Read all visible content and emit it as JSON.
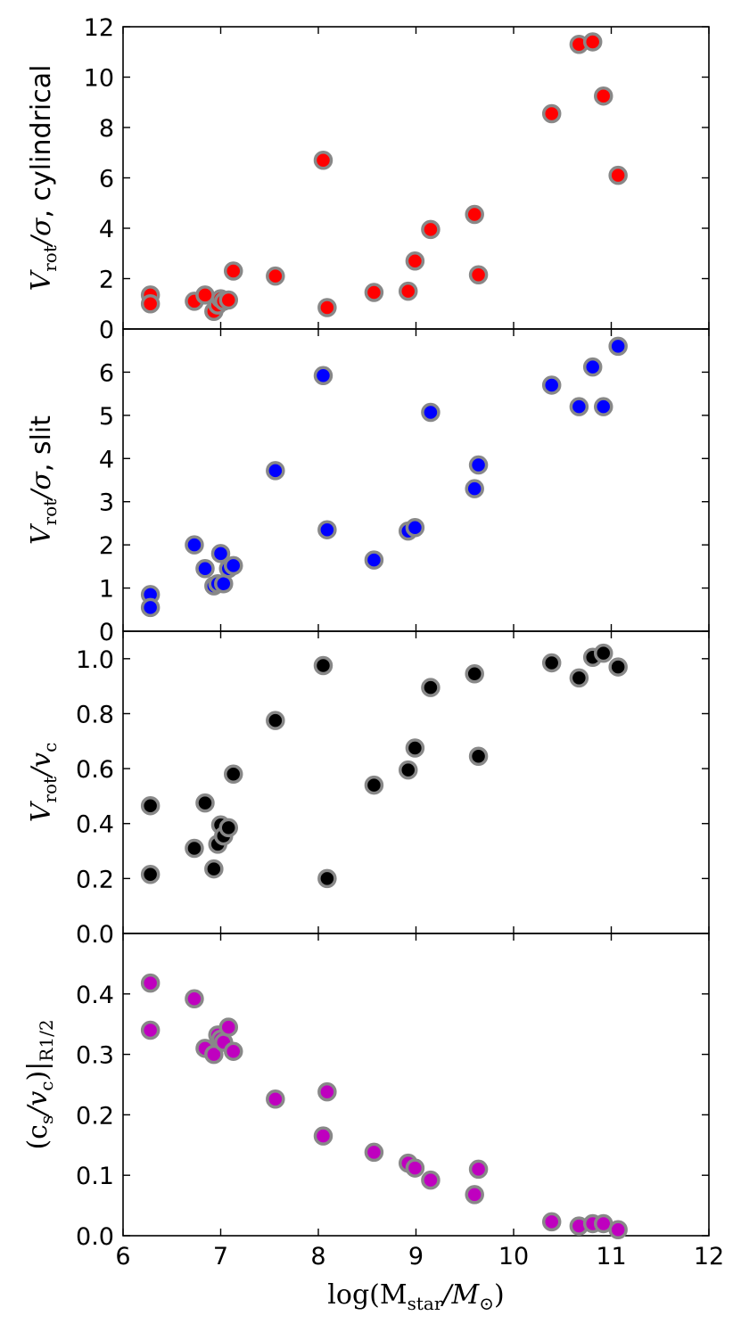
{
  "chart_data": [
    {
      "type": "scatter",
      "color": "#ff0000",
      "ylabel": {
        "prefix": "V",
        "sub": "rot",
        "mid": "/σ",
        "suffix": ", cylindrical"
      },
      "ylim": [
        0,
        12
      ],
      "yticks": [
        0,
        2,
        4,
        6,
        8,
        10,
        12
      ],
      "xlim": [
        6,
        12
      ],
      "points": [
        {
          "x": 6.28,
          "y": 1.35
        },
        {
          "x": 6.28,
          "y": 1.0
        },
        {
          "x": 6.73,
          "y": 1.1
        },
        {
          "x": 6.84,
          "y": 1.35
        },
        {
          "x": 6.93,
          "y": 0.7
        },
        {
          "x": 6.97,
          "y": 0.95
        },
        {
          "x": 7.0,
          "y": 1.2
        },
        {
          "x": 7.03,
          "y": 1.1
        },
        {
          "x": 7.08,
          "y": 1.15
        },
        {
          "x": 7.13,
          "y": 2.3
        },
        {
          "x": 7.56,
          "y": 2.1
        },
        {
          "x": 8.05,
          "y": 6.7
        },
        {
          "x": 8.09,
          "y": 0.85
        },
        {
          "x": 8.57,
          "y": 1.45
        },
        {
          "x": 8.92,
          "y": 1.5
        },
        {
          "x": 8.99,
          "y": 2.7
        },
        {
          "x": 9.15,
          "y": 3.95
        },
        {
          "x": 9.6,
          "y": 4.55
        },
        {
          "x": 9.64,
          "y": 2.15
        },
        {
          "x": 10.39,
          "y": 8.55
        },
        {
          "x": 10.67,
          "y": 11.3
        },
        {
          "x": 10.81,
          "y": 11.4
        },
        {
          "x": 10.92,
          "y": 9.25
        },
        {
          "x": 11.07,
          "y": 6.1
        }
      ]
    },
    {
      "type": "scatter",
      "color": "#0000ff",
      "ylabel": {
        "prefix": "V",
        "sub": "rot",
        "mid": "/σ",
        "suffix": ", slit"
      },
      "ylim": [
        0,
        7
      ],
      "yticks": [
        0,
        1,
        2,
        3,
        4,
        5,
        6
      ],
      "xlim": [
        6,
        12
      ],
      "points": [
        {
          "x": 6.28,
          "y": 0.85
        },
        {
          "x": 6.28,
          "y": 0.55
        },
        {
          "x": 6.73,
          "y": 2.0
        },
        {
          "x": 6.84,
          "y": 1.45
        },
        {
          "x": 6.93,
          "y": 1.05
        },
        {
          "x": 6.97,
          "y": 1.1
        },
        {
          "x": 7.0,
          "y": 1.8
        },
        {
          "x": 7.03,
          "y": 1.1
        },
        {
          "x": 7.08,
          "y": 1.45
        },
        {
          "x": 7.13,
          "y": 1.52
        },
        {
          "x": 7.56,
          "y": 3.72
        },
        {
          "x": 8.05,
          "y": 5.92
        },
        {
          "x": 8.09,
          "y": 2.35
        },
        {
          "x": 8.57,
          "y": 1.65
        },
        {
          "x": 8.92,
          "y": 2.32
        },
        {
          "x": 8.99,
          "y": 2.4
        },
        {
          "x": 9.15,
          "y": 5.07
        },
        {
          "x": 9.6,
          "y": 3.3
        },
        {
          "x": 9.64,
          "y": 3.85
        },
        {
          "x": 10.39,
          "y": 5.7
        },
        {
          "x": 10.67,
          "y": 5.2
        },
        {
          "x": 10.81,
          "y": 6.12
        },
        {
          "x": 10.92,
          "y": 5.2
        },
        {
          "x": 11.07,
          "y": 6.6
        }
      ]
    },
    {
      "type": "scatter",
      "color": "#000000",
      "ylabel": {
        "prefix": "V",
        "sub": "rot",
        "mid": "/v",
        "sub2": "c",
        "suffix": ""
      },
      "ylim": [
        0,
        1.1
      ],
      "yticks": [
        "0.0",
        "0.2",
        "0.4",
        "0.6",
        "0.8",
        "1.0"
      ],
      "xlim": [
        6,
        12
      ],
      "points": [
        {
          "x": 6.28,
          "y": 0.465
        },
        {
          "x": 6.28,
          "y": 0.215
        },
        {
          "x": 6.73,
          "y": 0.31
        },
        {
          "x": 6.84,
          "y": 0.475
        },
        {
          "x": 6.93,
          "y": 0.235
        },
        {
          "x": 6.97,
          "y": 0.325
        },
        {
          "x": 7.0,
          "y": 0.395
        },
        {
          "x": 7.03,
          "y": 0.355
        },
        {
          "x": 7.08,
          "y": 0.385
        },
        {
          "x": 7.13,
          "y": 0.58
        },
        {
          "x": 7.56,
          "y": 0.775
        },
        {
          "x": 8.05,
          "y": 0.975
        },
        {
          "x": 8.09,
          "y": 0.2
        },
        {
          "x": 8.57,
          "y": 0.54
        },
        {
          "x": 8.92,
          "y": 0.595
        },
        {
          "x": 8.99,
          "y": 0.675
        },
        {
          "x": 9.15,
          "y": 0.895
        },
        {
          "x": 9.6,
          "y": 0.945
        },
        {
          "x": 9.64,
          "y": 0.645
        },
        {
          "x": 10.39,
          "y": 0.985
        },
        {
          "x": 10.67,
          "y": 0.93
        },
        {
          "x": 10.81,
          "y": 1.005
        },
        {
          "x": 10.92,
          "y": 1.02
        },
        {
          "x": 11.07,
          "y": 0.97
        }
      ]
    },
    {
      "type": "scatter",
      "color": "#bf00bf",
      "ylabel": {
        "prefix": "(c",
        "sub": "s",
        "mid": "/v",
        "sub2": "c",
        "suffix": ")|",
        "sub3": "R1/2"
      },
      "ylim": [
        0,
        0.5
      ],
      "yticks": [
        "0.0",
        "0.1",
        "0.2",
        "0.3",
        "0.4"
      ],
      "xlim": [
        6,
        12
      ],
      "xticks": [
        6,
        7,
        8,
        9,
        10,
        11,
        12
      ],
      "xlabel": {
        "prefix": "log(M",
        "sub": "star",
        "mid": "/M",
        "sub2": "⊙",
        "suffix": ")"
      },
      "points": [
        {
          "x": 6.28,
          "y": 0.418
        },
        {
          "x": 6.28,
          "y": 0.34
        },
        {
          "x": 6.73,
          "y": 0.392
        },
        {
          "x": 6.84,
          "y": 0.31
        },
        {
          "x": 6.93,
          "y": 0.3
        },
        {
          "x": 6.97,
          "y": 0.332
        },
        {
          "x": 7.0,
          "y": 0.325
        },
        {
          "x": 7.03,
          "y": 0.32
        },
        {
          "x": 7.08,
          "y": 0.345
        },
        {
          "x": 7.13,
          "y": 0.305
        },
        {
          "x": 7.56,
          "y": 0.226
        },
        {
          "x": 8.05,
          "y": 0.165
        },
        {
          "x": 8.09,
          "y": 0.238
        },
        {
          "x": 8.57,
          "y": 0.138
        },
        {
          "x": 8.92,
          "y": 0.12
        },
        {
          "x": 8.99,
          "y": 0.112
        },
        {
          "x": 9.15,
          "y": 0.092
        },
        {
          "x": 9.6,
          "y": 0.068
        },
        {
          "x": 9.64,
          "y": 0.11
        },
        {
          "x": 10.39,
          "y": 0.023
        },
        {
          "x": 10.67,
          "y": 0.016
        },
        {
          "x": 10.81,
          "y": 0.02
        },
        {
          "x": 10.92,
          "y": 0.02
        },
        {
          "x": 11.07,
          "y": 0.01
        }
      ]
    }
  ]
}
